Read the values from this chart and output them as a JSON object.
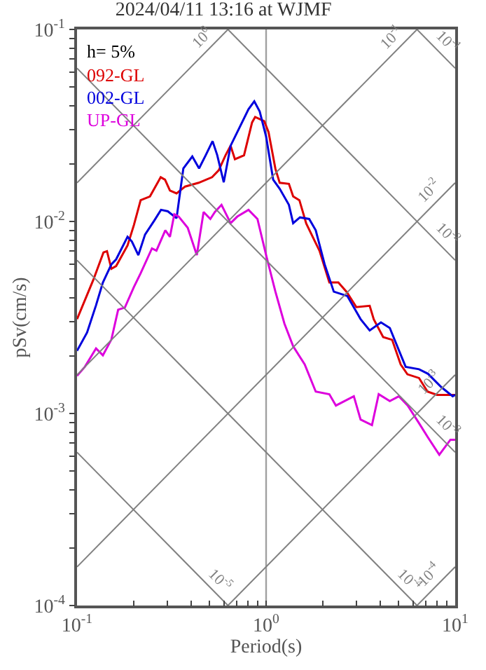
{
  "chart_data": {
    "type": "line",
    "title": "2024/04/11 13:16 at WJMF",
    "xlabel": "Period(s)",
    "ylabel": "pSv(cm/s)",
    "annotations": [
      "h= 5%"
    ],
    "log": "xy",
    "grid": true,
    "legend": "top left",
    "xlim": [
      0.1,
      10
    ],
    "ylim": [
      0.0001,
      0.1
    ],
    "xticks": [
      {
        "value": 0.1,
        "label": "10$^{-1}$"
      },
      {
        "value": 0.2,
        "label": null
      },
      {
        "value": 0.3,
        "label": null
      },
      {
        "value": 0.4,
        "label": null
      },
      {
        "value": 0.5,
        "label": null
      },
      {
        "value": 0.6,
        "label": null
      },
      {
        "value": 0.7,
        "label": null
      },
      {
        "value": 0.8,
        "label": null
      },
      {
        "value": 0.9,
        "label": null
      },
      {
        "value": 1,
        "label": "10$^{0}$"
      },
      {
        "value": 2,
        "label": null
      },
      {
        "value": 3,
        "label": null
      },
      {
        "value": 4,
        "label": null
      },
      {
        "value": 5,
        "label": null
      },
      {
        "value": 6,
        "label": null
      },
      {
        "value": 7,
        "label": null
      },
      {
        "value": 8,
        "label": null
      },
      {
        "value": 9,
        "label": null
      },
      {
        "value": 10,
        "label": "10$^{1}$"
      }
    ],
    "yticks": [
      {
        "value": 0.0001,
        "label": "10$^{-4}$"
      },
      {
        "value": 0.0002,
        "label": null
      },
      {
        "value": 0.0003,
        "label": null
      },
      {
        "value": 0.0004,
        "label": null
      },
      {
        "value": 0.0005,
        "label": null
      },
      {
        "value": 0.0006,
        "label": null
      },
      {
        "value": 0.0007,
        "label": null
      },
      {
        "value": 0.0008,
        "label": null
      },
      {
        "value": 0.0009,
        "label": null
      },
      {
        "value": 0.001,
        "label": "10$^{-3}$"
      },
      {
        "value": 0.002,
        "label": null
      },
      {
        "value": 0.003,
        "label": null
      },
      {
        "value": 0.004,
        "label": null
      },
      {
        "value": 0.005,
        "label": null
      },
      {
        "value": 0.006,
        "label": null
      },
      {
        "value": 0.007,
        "label": null
      },
      {
        "value": 0.008,
        "label": null
      },
      {
        "value": 0.009,
        "label": null
      },
      {
        "value": 0.01,
        "label": "10$^{-2}$"
      },
      {
        "value": 0.02,
        "label": null
      },
      {
        "value": 0.03,
        "label": null
      },
      {
        "value": 0.04,
        "label": null
      },
      {
        "value": 0.05,
        "label": null
      },
      {
        "value": 0.06,
        "label": null
      },
      {
        "value": 0.07,
        "label": null
      },
      {
        "value": 0.08,
        "label": null
      },
      {
        "value": 0.09,
        "label": null
      },
      {
        "value": 0.1,
        "label": "10$^{-1}$"
      }
    ],
    "series": [
      {
        "name": "092-GL",
        "color": "#dd0000",
        "x": [
          0.1,
          0.122,
          0.138,
          0.144,
          0.152,
          0.161,
          0.185,
          0.2,
          0.217,
          0.243,
          0.277,
          0.292,
          0.31,
          0.336,
          0.373,
          0.44,
          0.518,
          0.562,
          0.61,
          0.649,
          0.684,
          0.764,
          0.843,
          0.875,
          0.977,
          1.03,
          1.12,
          1.18,
          1.32,
          1.39,
          1.5,
          1.63,
          1.92,
          2.16,
          2.41,
          2.67,
          3.0,
          3.53,
          3.71,
          4.16,
          4.64,
          5.15,
          5.59,
          6.44,
          7.14,
          8.01,
          9.7,
          10
        ],
        "values": [
          0.0031,
          0.00497,
          0.0069,
          0.007,
          0.00567,
          0.00586,
          0.0075,
          0.0096,
          0.0129,
          0.0135,
          0.017,
          0.0165,
          0.0145,
          0.014,
          0.0152,
          0.0159,
          0.017,
          0.0185,
          0.0221,
          0.0248,
          0.0211,
          0.0221,
          0.0328,
          0.035,
          0.0333,
          0.0292,
          0.0188,
          0.0159,
          0.0157,
          0.0135,
          0.0129,
          0.00975,
          0.007,
          0.00481,
          0.00481,
          0.00429,
          0.00358,
          0.00364,
          0.00309,
          0.0025,
          0.00242,
          0.0018,
          0.0016,
          0.00153,
          0.0013,
          0.00125,
          0.00125,
          0.00125
        ]
      },
      {
        "name": "002-GL",
        "color": "#0000dd",
        "x": [
          0.1,
          0.113,
          0.126,
          0.137,
          0.152,
          0.161,
          0.185,
          0.195,
          0.211,
          0.229,
          0.256,
          0.278,
          0.302,
          0.336,
          0.365,
          0.407,
          0.442,
          0.48,
          0.521,
          0.551,
          0.597,
          0.649,
          0.723,
          0.807,
          0.866,
          0.925,
          1.0,
          1.09,
          1.18,
          1.32,
          1.39,
          1.51,
          1.69,
          1.83,
          2.04,
          2.28,
          2.69,
          3.16,
          3.53,
          4.05,
          4.51,
          5.47,
          6.44,
          7.18,
          8.46,
          9.7,
          10
        ],
        "values": [
          0.00212,
          0.00264,
          0.00366,
          0.00481,
          0.00598,
          0.00635,
          0.00832,
          0.00787,
          0.00668,
          0.00855,
          0.0101,
          0.0115,
          0.0113,
          0.0104,
          0.0189,
          0.0218,
          0.0189,
          0.0222,
          0.0262,
          0.0222,
          0.016,
          0.0248,
          0.0308,
          0.0384,
          0.0422,
          0.0374,
          0.0277,
          0.0165,
          0.0148,
          0.0122,
          0.0098,
          0.0105,
          0.0103,
          0.009,
          0.00598,
          0.00431,
          0.00409,
          0.0031,
          0.00271,
          0.00298,
          0.00279,
          0.00175,
          0.0017,
          0.00161,
          0.00137,
          0.00123,
          0.00125
        ]
      },
      {
        "name": "UP-GL",
        "color": "#dd00dd",
        "x": [
          0.1,
          0.11,
          0.126,
          0.137,
          0.152,
          0.165,
          0.179,
          0.2,
          0.217,
          0.249,
          0.263,
          0.293,
          0.31,
          0.327,
          0.345,
          0.385,
          0.43,
          0.467,
          0.507,
          0.536,
          0.581,
          0.649,
          0.704,
          0.807,
          0.9,
          1.0,
          1.12,
          1.25,
          1.39,
          1.6,
          1.83,
          2.16,
          2.34,
          2.91,
          3.16,
          3.63,
          3.94,
          4.51,
          5.04,
          5.61,
          6.44,
          7.18,
          8.24,
          9.44,
          10
        ],
        "values": [
          0.00157,
          0.00175,
          0.00218,
          0.00201,
          0.00243,
          0.00347,
          0.00356,
          0.00456,
          0.00537,
          0.00724,
          0.00705,
          0.009,
          0.00832,
          0.0109,
          0.0106,
          0.00927,
          0.00668,
          0.0112,
          0.0103,
          0.0112,
          0.0122,
          0.0098,
          0.0106,
          0.0115,
          0.0103,
          0.00668,
          0.00431,
          0.00294,
          0.00224,
          0.0018,
          0.0013,
          0.00126,
          0.0011,
          0.00123,
          0.00093,
          0.00087,
          0.00126,
          0.00116,
          0.00123,
          0.0011,
          0.00089,
          0.00075,
          0.00061,
          0.00073,
          0.00073
        ]
      },
      {
        "name": "10$^{0}$",
        "color": "#808080",
        "x": [
          0.1,
          0.6283
        ],
        "values": [
          0.0159,
          0.1
        ]
      },
      {
        "name": "10$^{-1}$",
        "color": "#808080",
        "x": [
          0.1,
          6.283
        ],
        "values": [
          0.00159,
          0.1
        ]
      },
      {
        "name": "10$^{-2}$",
        "color": "#808080",
        "x": [
          0.1,
          10
        ],
        "values": [
          0.000159,
          0.0159
        ]
      },
      {
        "name": "10$^{-3}$",
        "color": "#808080",
        "x": [
          0.6283,
          10
        ],
        "values": [
          0.0001,
          0.00159
        ]
      },
      {
        "name": "10$^{-4}$",
        "color": "#808080",
        "x": [
          6.283,
          10
        ],
        "values": [
          0.0001,
          0.000159
        ]
      },
      {
        "name": "10$^{-1}$",
        "color": "#808080",
        "x": [
          6.283,
          10
        ],
        "values": [
          0.1,
          0.0628
        ]
      },
      {
        "name": "10$^{-2}$",
        "color": "#808080",
        "x": [
          0.6283,
          10
        ],
        "values": [
          0.1,
          0.00628
        ]
      },
      {
        "name": "10$^{-3}$",
        "color": "#808080",
        "x": [
          0.1,
          10
        ],
        "values": [
          0.0628,
          0.000628
        ]
      },
      {
        "name": "10$^{-4}$",
        "color": "#808080",
        "x": [
          0.1,
          6.283
        ],
        "values": [
          0.00628,
          0.0001
        ]
      },
      {
        "name": "10$^{-5}$",
        "color": "#808080",
        "x": [
          0.1,
          0.6283
        ],
        "values": [
          0.000628,
          0.0001
        ]
      }
    ]
  }
}
